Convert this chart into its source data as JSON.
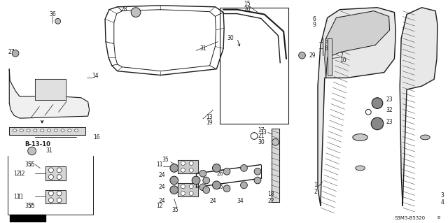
{
  "bg_color": "#ffffff",
  "line_color": "#1a1a1a",
  "fig_width": 6.4,
  "fig_height": 3.19,
  "dpi": 100,
  "watermark": "S3M3-B5320"
}
